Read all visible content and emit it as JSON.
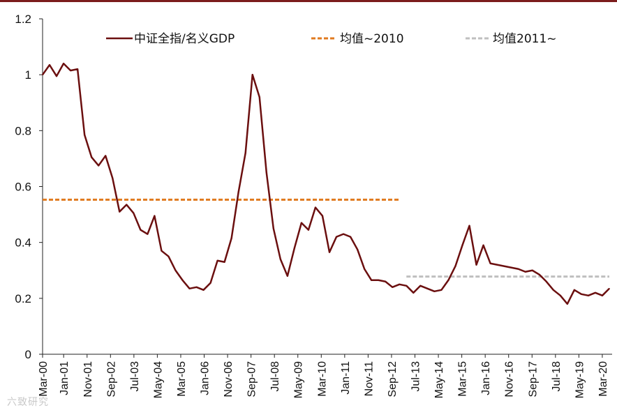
{
  "colors": {
    "main_line": "#6b0f0f",
    "mean_pre2010": "#e07a1f",
    "mean_post2011": "#bfbfbf",
    "axis": "#222222",
    "top_rule": "#7b1c1c"
  },
  "watermark": "六致研究",
  "chart_data": {
    "type": "line",
    "title": "",
    "xlabel": "",
    "ylabel": "",
    "ylim": [
      0,
      1.2
    ],
    "yticks": [
      "0",
      "0.2",
      "0.4",
      "0.6",
      "0.8",
      "1",
      "1.2"
    ],
    "ytick_values": [
      0,
      0.2,
      0.4,
      0.6,
      0.8,
      1.0,
      1.2
    ],
    "xlim": [
      0,
      81
    ],
    "xticks": [
      {
        "label": "Mar-00",
        "index": 0
      },
      {
        "label": "Jan-01",
        "index": 3.6
      },
      {
        "label": "Nov-01",
        "index": 7.6
      },
      {
        "label": "Sep-02",
        "index": 11.6
      },
      {
        "label": "Jul-03",
        "index": 15.6
      },
      {
        "label": "May-04",
        "index": 19.6
      },
      {
        "label": "Mar-05",
        "index": 23.6
      },
      {
        "label": "Jan-06",
        "index": 27.6
      },
      {
        "label": "Nov-06",
        "index": 31.6
      },
      {
        "label": "Sep-07",
        "index": 35.6
      },
      {
        "label": "Jul-08",
        "index": 39.6
      },
      {
        "label": "May-09",
        "index": 43.6
      },
      {
        "label": "Mar-10",
        "index": 47.6
      },
      {
        "label": "Jan-11",
        "index": 51.6
      },
      {
        "label": "Nov-11",
        "index": 55.6
      },
      {
        "label": "Sep-12",
        "index": 59.6
      },
      {
        "label": "Jul-13",
        "index": 63.6
      },
      {
        "label": "May-14",
        "index": 67.6
      },
      {
        "label": "Mar-15",
        "index": 71.6
      },
      {
        "label": "Jan-16",
        "index": 75.6
      },
      {
        "label": "Nov-16",
        "index": 79.6
      },
      {
        "label": "Sep-17",
        "index": 83.6
      },
      {
        "label": "Jul-18",
        "index": 87.6
      },
      {
        "label": "May-19",
        "index": 91.6
      },
      {
        "label": "Mar-20",
        "index": 95.6
      }
    ],
    "legend": [
      {
        "name": "中证全指/名义GDP",
        "style": "solid"
      },
      {
        "name": "均值~2010",
        "style": "dashed"
      },
      {
        "name": "均值2011~",
        "style": "dashed"
      }
    ],
    "series": [
      {
        "name": "中证全指/名义GDP",
        "values": [
          1.0,
          1.035,
          0.995,
          1.04,
          1.015,
          1.02,
          0.785,
          0.705,
          0.675,
          0.71,
          0.63,
          0.51,
          0.535,
          0.505,
          0.445,
          0.43,
          0.495,
          0.37,
          0.35,
          0.3,
          0.265,
          0.235,
          0.24,
          0.23,
          0.255,
          0.335,
          0.33,
          0.415,
          0.58,
          0.72,
          1.0,
          0.92,
          0.65,
          0.45,
          0.34,
          0.28,
          0.38,
          0.47,
          0.445,
          0.525,
          0.495,
          0.365,
          0.42,
          0.43,
          0.42,
          0.375,
          0.305,
          0.265,
          0.265,
          0.26,
          0.24,
          0.25,
          0.245,
          0.22,
          0.245,
          0.235,
          0.225,
          0.23,
          0.265,
          0.315,
          0.39,
          0.46,
          0.32,
          0.39,
          0.325,
          0.32,
          0.315,
          0.31,
          0.305,
          0.295,
          0.3,
          0.285,
          0.26,
          0.23,
          0.21,
          0.18,
          0.23,
          0.215,
          0.21,
          0.22,
          0.21,
          0.235
        ]
      },
      {
        "name": "均值~2010",
        "value": 0.553,
        "x_range": [
          0,
          51
        ]
      },
      {
        "name": "均值2011~",
        "value": 0.278,
        "x_range": [
          52,
          81
        ]
      }
    ]
  }
}
